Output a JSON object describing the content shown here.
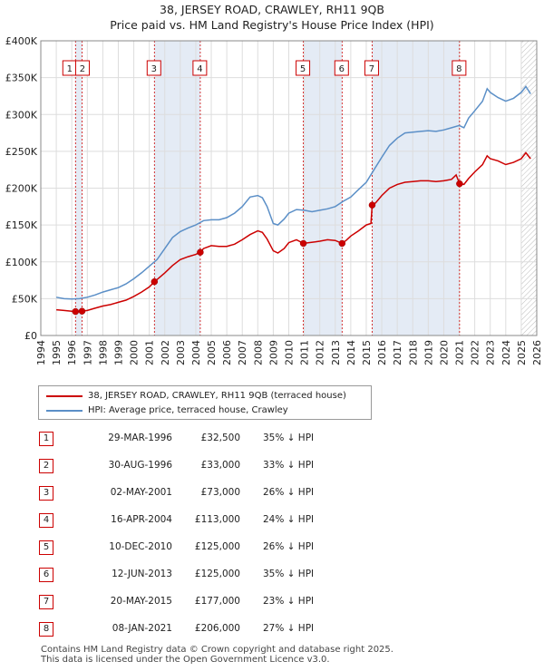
{
  "title": "38, JERSEY ROAD, CRAWLEY, RH11 9QB",
  "subtitle": "Price paid vs. HM Land Registry's House Price Index (HPI)",
  "legend": [
    {
      "label": "38, JERSEY ROAD, CRAWLEY, RH11 9QB (terraced house)",
      "color": "#cc0000"
    },
    {
      "label": "HPI: Average price, terraced house, Crawley",
      "color": "#5b8fc7"
    }
  ],
  "sales": [
    {
      "num": "1",
      "date": "29-MAR-1996",
      "price": "£32,500",
      "pct": "35% ↓ HPI"
    },
    {
      "num": "2",
      "date": "30-AUG-1996",
      "price": "£33,000",
      "pct": "33% ↓ HPI"
    },
    {
      "num": "3",
      "date": "02-MAY-2001",
      "price": "£73,000",
      "pct": "26% ↓ HPI"
    },
    {
      "num": "4",
      "date": "16-APR-2004",
      "price": "£113,000",
      "pct": "24% ↓ HPI"
    },
    {
      "num": "5",
      "date": "10-DEC-2010",
      "price": "£125,000",
      "pct": "26% ↓ HPI"
    },
    {
      "num": "6",
      "date": "12-JUN-2013",
      "price": "£125,000",
      "pct": "35% ↓ HPI"
    },
    {
      "num": "7",
      "date": "20-MAY-2015",
      "price": "£177,000",
      "pct": "23% ↓ HPI"
    },
    {
      "num": "8",
      "date": "08-JAN-2021",
      "price": "£206,000",
      "pct": "27% ↓ HPI"
    }
  ],
  "footer": [
    "Contains HM Land Registry data © Crown copyright and database right 2025.",
    "This data is licensed under the Open Government Licence v3.0."
  ],
  "chart_data": {
    "type": "line",
    "title": "38, JERSEY ROAD, CRAWLEY, RH11 9QB",
    "subtitle": "Price paid vs. HM Land Registry's House Price Index (HPI)",
    "xlim": [
      1994,
      2026
    ],
    "ylim": [
      0,
      400000
    ],
    "x_ticks": [
      1994,
      1995,
      1996,
      1997,
      1998,
      1999,
      2000,
      2001,
      2002,
      2003,
      2004,
      2005,
      2006,
      2007,
      2008,
      2009,
      2010,
      2011,
      2012,
      2013,
      2014,
      2015,
      2016,
      2017,
      2018,
      2019,
      2020,
      2021,
      2022,
      2023,
      2024,
      2025,
      2026
    ],
    "y_ticks": [
      {
        "value": 0,
        "label": "£0"
      },
      {
        "value": 50000,
        "label": "£50K"
      },
      {
        "value": 100000,
        "label": "£100K"
      },
      {
        "value": 150000,
        "label": "£150K"
      },
      {
        "value": 200000,
        "label": "£200K"
      },
      {
        "value": 250000,
        "label": "£250K"
      },
      {
        "value": 300000,
        "label": "£300K"
      },
      {
        "value": 350000,
        "label": "£350K"
      },
      {
        "value": 400000,
        "label": "£400K"
      }
    ],
    "grid": true,
    "sale_markers": [
      {
        "label": "1",
        "x": 1996.24,
        "y": 32500
      },
      {
        "label": "2",
        "x": 1996.66,
        "y": 33000
      },
      {
        "label": "3",
        "x": 2001.33,
        "y": 73000
      },
      {
        "label": "4",
        "x": 2004.29,
        "y": 113000
      },
      {
        "label": "5",
        "x": 2010.94,
        "y": 125000
      },
      {
        "label": "6",
        "x": 2013.44,
        "y": 125000
      },
      {
        "label": "7",
        "x": 2015.38,
        "y": 177000
      },
      {
        "label": "8",
        "x": 2021.02,
        "y": 206000
      }
    ],
    "shaded_spans": [
      [
        1996.24,
        1996.66
      ],
      [
        2001.33,
        2004.29
      ],
      [
        2010.94,
        2013.44
      ],
      [
        2015.38,
        2021.02
      ]
    ],
    "series": [
      {
        "name": "HPI: Average price, terraced house, Crawley",
        "color": "#5b8fc7",
        "points": [
          [
            1995.0,
            52000
          ],
          [
            1995.5,
            50000
          ],
          [
            1996.0,
            49500
          ],
          [
            1996.5,
            50000
          ],
          [
            1997.0,
            52000
          ],
          [
            1997.5,
            55000
          ],
          [
            1998.0,
            59000
          ],
          [
            1998.5,
            62000
          ],
          [
            1999.0,
            65000
          ],
          [
            1999.5,
            70000
          ],
          [
            2000.0,
            77000
          ],
          [
            2000.5,
            85000
          ],
          [
            2001.0,
            94000
          ],
          [
            2001.5,
            103000
          ],
          [
            2002.0,
            118000
          ],
          [
            2002.5,
            133000
          ],
          [
            2003.0,
            141000
          ],
          [
            2003.5,
            146000
          ],
          [
            2004.0,
            150000
          ],
          [
            2004.5,
            156000
          ],
          [
            2005.0,
            157000
          ],
          [
            2005.5,
            157000
          ],
          [
            2006.0,
            160000
          ],
          [
            2006.5,
            166000
          ],
          [
            2007.0,
            175000
          ],
          [
            2007.5,
            188000
          ],
          [
            2008.0,
            190000
          ],
          [
            2008.3,
            187000
          ],
          [
            2008.6,
            175000
          ],
          [
            2009.0,
            152000
          ],
          [
            2009.3,
            150000
          ],
          [
            2009.7,
            158000
          ],
          [
            2010.0,
            166000
          ],
          [
            2010.5,
            171000
          ],
          [
            2011.0,
            170000
          ],
          [
            2011.5,
            168000
          ],
          [
            2012.0,
            170000
          ],
          [
            2012.5,
            172000
          ],
          [
            2013.0,
            175000
          ],
          [
            2013.5,
            182000
          ],
          [
            2014.0,
            188000
          ],
          [
            2014.5,
            198000
          ],
          [
            2015.0,
            208000
          ],
          [
            2015.5,
            225000
          ],
          [
            2016.0,
            242000
          ],
          [
            2016.5,
            258000
          ],
          [
            2017.0,
            268000
          ],
          [
            2017.5,
            275000
          ],
          [
            2018.0,
            276000
          ],
          [
            2018.5,
            277000
          ],
          [
            2019.0,
            278000
          ],
          [
            2019.5,
            277000
          ],
          [
            2020.0,
            279000
          ],
          [
            2020.5,
            282000
          ],
          [
            2021.0,
            285000
          ],
          [
            2021.3,
            282000
          ],
          [
            2021.6,
            295000
          ],
          [
            2022.0,
            305000
          ],
          [
            2022.5,
            318000
          ],
          [
            2022.8,
            335000
          ],
          [
            2023.0,
            330000
          ],
          [
            2023.5,
            323000
          ],
          [
            2024.0,
            318000
          ],
          [
            2024.5,
            322000
          ],
          [
            2025.0,
            330000
          ],
          [
            2025.3,
            338000
          ],
          [
            2025.6,
            328000
          ]
        ]
      },
      {
        "name": "38, JERSEY ROAD, CRAWLEY, RH11 9QB (terraced house)",
        "color": "#cc0000",
        "points": [
          [
            1995.0,
            35000
          ],
          [
            1995.5,
            34000
          ],
          [
            1996.0,
            33000
          ],
          [
            1996.24,
            32500
          ],
          [
            1996.5,
            33000
          ],
          [
            1996.66,
            33000
          ],
          [
            1997.0,
            34000
          ],
          [
            1997.5,
            37000
          ],
          [
            1998.0,
            40000
          ],
          [
            1998.5,
            42000
          ],
          [
            1999.0,
            45000
          ],
          [
            1999.5,
            48000
          ],
          [
            2000.0,
            53000
          ],
          [
            2000.5,
            59000
          ],
          [
            2001.0,
            66000
          ],
          [
            2001.33,
            73000
          ],
          [
            2001.5,
            76000
          ],
          [
            2002.0,
            85000
          ],
          [
            2002.5,
            95000
          ],
          [
            2003.0,
            103000
          ],
          [
            2003.5,
            107000
          ],
          [
            2004.0,
            110000
          ],
          [
            2004.29,
            113000
          ],
          [
            2004.5,
            118000
          ],
          [
            2005.0,
            122000
          ],
          [
            2005.5,
            121000
          ],
          [
            2006.0,
            121000
          ],
          [
            2006.5,
            124000
          ],
          [
            2007.0,
            130000
          ],
          [
            2007.5,
            137000
          ],
          [
            2008.0,
            142000
          ],
          [
            2008.3,
            140000
          ],
          [
            2008.6,
            131000
          ],
          [
            2009.0,
            115000
          ],
          [
            2009.3,
            112000
          ],
          [
            2009.7,
            118000
          ],
          [
            2010.0,
            126000
          ],
          [
            2010.5,
            130000
          ],
          [
            2010.94,
            125000
          ],
          [
            2011.3,
            126000
          ],
          [
            2011.7,
            127000
          ],
          [
            2012.0,
            128000
          ],
          [
            2012.5,
            130000
          ],
          [
            2013.0,
            129000
          ],
          [
            2013.44,
            125000
          ],
          [
            2013.7,
            129000
          ],
          [
            2014.0,
            135000
          ],
          [
            2014.5,
            142000
          ],
          [
            2015.0,
            150000
          ],
          [
            2015.3,
            152000
          ],
          [
            2015.38,
            177000
          ],
          [
            2015.6,
            180000
          ],
          [
            2016.0,
            190000
          ],
          [
            2016.5,
            200000
          ],
          [
            2017.0,
            205000
          ],
          [
            2017.5,
            208000
          ],
          [
            2018.0,
            209000
          ],
          [
            2018.5,
            210000
          ],
          [
            2019.0,
            210000
          ],
          [
            2019.5,
            209000
          ],
          [
            2020.0,
            210000
          ],
          [
            2020.5,
            212000
          ],
          [
            2020.8,
            218000
          ],
          [
            2021.02,
            206000
          ],
          [
            2021.3,
            205000
          ],
          [
            2021.6,
            213000
          ],
          [
            2022.0,
            222000
          ],
          [
            2022.5,
            232000
          ],
          [
            2022.8,
            244000
          ],
          [
            2023.0,
            240000
          ],
          [
            2023.5,
            237000
          ],
          [
            2024.0,
            232000
          ],
          [
            2024.5,
            235000
          ],
          [
            2025.0,
            240000
          ],
          [
            2025.3,
            248000
          ],
          [
            2025.6,
            240000
          ]
        ]
      }
    ]
  }
}
